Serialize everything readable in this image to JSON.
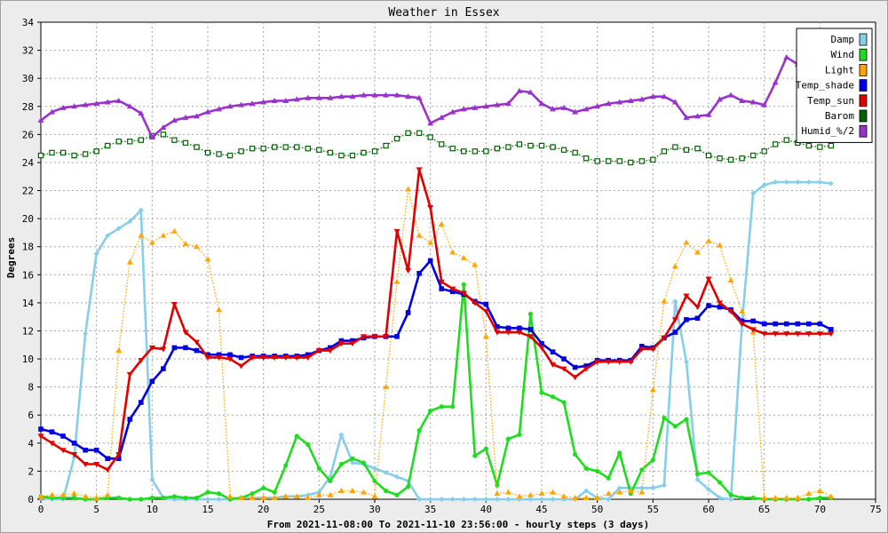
{
  "chart_data": {
    "type": "line",
    "title": "Weather in Essex",
    "xlabel": "From 2021-11-08:00 To 2021-11-10 23:56:00 - hourly steps (3 days)",
    "ylabel": "Degrees",
    "xlim": [
      0,
      75
    ],
    "ylim": [
      0,
      34
    ],
    "xticks": [
      0,
      5,
      10,
      15,
      20,
      25,
      30,
      35,
      40,
      45,
      50,
      55,
      60,
      65,
      70,
      75
    ],
    "yticks": [
      0,
      2,
      4,
      6,
      8,
      10,
      12,
      14,
      16,
      18,
      20,
      22,
      24,
      26,
      28,
      30,
      32,
      34
    ],
    "grid": true,
    "legend_position": "top-right",
    "series": [
      {
        "name": "Damp",
        "color": "#87ceeb",
        "marker": "diamond",
        "style": "solid",
        "values": [
          0.1,
          0.0,
          0.0,
          3.0,
          11.8,
          17.5,
          18.8,
          19.3,
          19.8,
          20.6,
          1.4,
          0.1,
          0.0,
          0.0,
          0.0,
          0.0,
          0.0,
          0.0,
          0.1,
          0.1,
          0.1,
          0.1,
          0.2,
          0.2,
          0.3,
          0.5,
          1.6,
          4.6,
          2.6,
          2.5,
          2.2,
          1.9,
          1.6,
          1.3,
          0.0,
          0.0,
          0.0,
          0.0,
          0.0,
          0.0,
          0.0,
          0.0,
          0.0,
          0.0,
          0.0,
          0.0,
          0.0,
          0.0,
          0.0,
          0.6,
          0.1,
          0.0,
          0.8,
          0.8,
          0.8,
          0.8,
          1.0,
          14.1,
          9.8,
          1.4,
          0.7,
          0.1,
          0.0,
          12.5,
          21.8,
          22.4,
          22.6,
          22.6,
          22.6,
          22.6,
          22.6,
          22.5
        ]
      },
      {
        "name": "Wind",
        "color": "#1edc1e",
        "marker": "circle",
        "style": "solid",
        "values": [
          0.2,
          0.1,
          0.1,
          0.1,
          0.0,
          0.0,
          0.1,
          0.1,
          0.0,
          0.0,
          0.1,
          0.1,
          0.2,
          0.1,
          0.1,
          0.5,
          0.4,
          0.0,
          0.1,
          0.4,
          0.8,
          0.5,
          2.4,
          4.5,
          3.9,
          2.2,
          1.3,
          2.5,
          2.9,
          2.6,
          1.3,
          0.6,
          0.3,
          0.9,
          4.9,
          6.3,
          6.6,
          6.6,
          15.3,
          3.1,
          3.6,
          1.0,
          4.3,
          4.6,
          13.2,
          7.6,
          7.3,
          6.9,
          3.2,
          2.2,
          2.0,
          1.5,
          3.3,
          0.4,
          2.1,
          2.8,
          5.8,
          5.2,
          5.7,
          1.8,
          1.9,
          1.2,
          0.3,
          0.1,
          0.1,
          0.0,
          0.0,
          0.0,
          0.0,
          0.0,
          0.1,
          0.1
        ]
      },
      {
        "name": "Light",
        "color": "#ffa500",
        "marker": "triangle-up",
        "style": "dotted",
        "values": [
          0.2,
          0.3,
          0.3,
          0.4,
          0.2,
          0.1,
          0.3,
          10.6,
          16.9,
          18.8,
          18.3,
          18.8,
          19.1,
          18.2,
          18.0,
          17.1,
          13.5,
          0.2,
          0.1,
          0.1,
          0.1,
          0.1,
          0.2,
          0.2,
          0.1,
          0.3,
          0.3,
          0.6,
          0.6,
          0.5,
          0.2,
          8.0,
          15.5,
          22.1,
          18.8,
          18.3,
          19.6,
          17.6,
          17.2,
          16.7,
          11.6,
          0.4,
          0.5,
          0.2,
          0.3,
          0.4,
          0.5,
          0.2,
          0.1,
          0.1,
          0.1,
          0.4,
          0.5,
          0.6,
          0.5,
          7.8,
          14.1,
          16.6,
          18.3,
          17.6,
          18.4,
          18.1,
          15.6,
          13.4,
          11.9,
          0.1,
          0.1,
          0.1,
          0.1,
          0.4,
          0.6,
          0.2
        ]
      },
      {
        "name": "Temp_shade",
        "color": "#0000e0",
        "marker": "square",
        "style": "solid",
        "values": [
          5.0,
          4.8,
          4.5,
          4.0,
          3.5,
          3.5,
          2.9,
          2.9,
          5.7,
          6.9,
          8.4,
          9.3,
          10.8,
          10.8,
          10.6,
          10.3,
          10.3,
          10.3,
          10.1,
          10.2,
          10.2,
          10.2,
          10.2,
          10.2,
          10.3,
          10.6,
          10.8,
          11.3,
          11.3,
          11.5,
          11.6,
          11.6,
          11.6,
          13.3,
          16.1,
          17.0,
          15.0,
          14.8,
          14.6,
          14.1,
          13.9,
          12.3,
          12.2,
          12.2,
          12.1,
          11.1,
          10.5,
          10.0,
          9.4,
          9.5,
          9.9,
          9.9,
          9.9,
          9.9,
          10.9,
          10.8,
          11.5,
          11.9,
          12.8,
          12.9,
          13.8,
          13.7,
          13.5,
          12.7,
          12.7,
          12.5,
          12.5,
          12.5,
          12.5,
          12.5,
          12.5,
          12.1
        ]
      },
      {
        "name": "Temp_sun",
        "color": "#e00000",
        "marker": "triangle-down",
        "style": "solid",
        "values": [
          4.5,
          4.0,
          3.5,
          3.2,
          2.5,
          2.5,
          2.1,
          3.2,
          8.9,
          9.9,
          10.8,
          10.7,
          13.9,
          11.9,
          11.2,
          10.1,
          10.1,
          10.0,
          9.5,
          10.1,
          10.1,
          10.1,
          10.1,
          10.1,
          10.1,
          10.6,
          10.6,
          11.1,
          11.1,
          11.6,
          11.6,
          11.6,
          19.1,
          16.3,
          23.5,
          20.8,
          15.5,
          15.0,
          14.7,
          14.0,
          13.4,
          11.9,
          11.9,
          11.9,
          11.6,
          10.8,
          9.6,
          9.3,
          8.7,
          9.3,
          9.8,
          9.8,
          9.8,
          9.8,
          10.7,
          10.7,
          11.5,
          12.8,
          14.5,
          13.7,
          15.7,
          14.0,
          13.4,
          12.5,
          12.1,
          11.8,
          11.8,
          11.8,
          11.8,
          11.8,
          11.8,
          11.8
        ]
      },
      {
        "name": "Barom",
        "color": "#006400",
        "marker": "square-open",
        "style": "dotted",
        "values": [
          24.5,
          24.7,
          24.7,
          24.5,
          24.6,
          24.8,
          25.2,
          25.5,
          25.5,
          25.6,
          25.9,
          26.0,
          25.6,
          25.4,
          25.1,
          24.7,
          24.6,
          24.5,
          24.8,
          25.0,
          25.0,
          25.1,
          25.1,
          25.1,
          25.0,
          24.9,
          24.7,
          24.5,
          24.5,
          24.7,
          24.8,
          25.2,
          25.7,
          26.1,
          26.1,
          25.8,
          25.3,
          25.0,
          24.8,
          24.8,
          24.8,
          25.0,
          25.1,
          25.3,
          25.2,
          25.2,
          25.1,
          24.9,
          24.7,
          24.3,
          24.1,
          24.1,
          24.1,
          24.0,
          24.1,
          24.2,
          24.8,
          25.1,
          24.9,
          25.0,
          24.5,
          24.3,
          24.2,
          24.3,
          24.5,
          24.8,
          25.3,
          25.6,
          25.4,
          25.2,
          25.1,
          25.2
        ]
      },
      {
        "name": "Humid_%/2",
        "color": "#9932cc",
        "marker": "triangle-up",
        "style": "solid",
        "values": [
          27.0,
          27.6,
          27.9,
          28.0,
          28.1,
          28.2,
          28.3,
          28.4,
          28.0,
          27.5,
          25.8,
          26.5,
          27.0,
          27.2,
          27.3,
          27.6,
          27.8,
          28.0,
          28.1,
          28.2,
          28.3,
          28.4,
          28.4,
          28.5,
          28.6,
          28.6,
          28.6,
          28.7,
          28.7,
          28.8,
          28.8,
          28.8,
          28.8,
          28.7,
          28.6,
          26.8,
          27.2,
          27.6,
          27.8,
          27.9,
          28.0,
          28.1,
          28.2,
          29.1,
          29.0,
          28.2,
          27.8,
          27.9,
          27.6,
          27.8,
          28.0,
          28.2,
          28.3,
          28.4,
          28.5,
          28.7,
          28.7,
          28.3,
          27.2,
          27.3,
          27.4,
          28.5,
          28.8,
          28.4,
          28.3,
          28.1,
          29.7,
          31.5,
          31.0,
          30.8,
          30.5,
          30.5
        ]
      }
    ]
  }
}
